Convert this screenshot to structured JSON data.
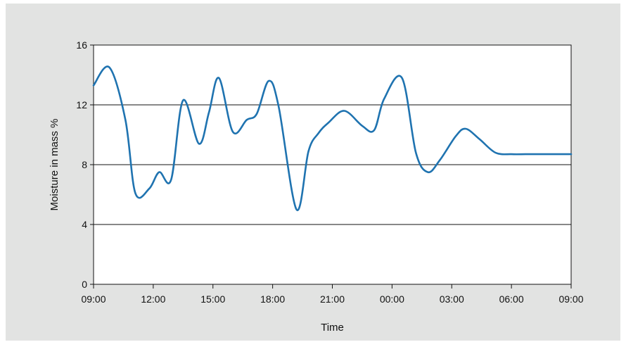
{
  "chart_data": {
    "type": "line",
    "title": "",
    "xlabel": "Time",
    "ylabel": "Moisture in mass %",
    "ylim": [
      0,
      16
    ],
    "yticks": [
      0,
      4,
      8,
      12,
      16
    ],
    "y_tick_labels": [
      "0",
      "4",
      "8",
      "12",
      "16"
    ],
    "xlim": [
      0,
      24
    ],
    "xticks": [
      0,
      3,
      6,
      9,
      12,
      15,
      18,
      21,
      24
    ],
    "x_tick_labels": [
      "09:00",
      "12:00",
      "15:00",
      "18:00",
      "21:00",
      "00:00",
      "03:00",
      "06:00",
      "09:00"
    ],
    "grid": "horizontal",
    "line_color": "#1f73b0",
    "panel_color": "#e2e3e2",
    "series": [
      {
        "x": [
          0,
          0.8,
          1.6,
          2.1,
          2.8,
          3.3,
          3.9,
          4.5,
          5.3,
          5.8,
          6.3,
          7.0,
          7.7,
          8.2,
          8.8,
          9.3,
          10.2,
          10.8,
          11.3,
          11.8,
          12.6,
          13.5,
          14.1,
          14.6,
          15.5,
          16.2,
          16.8,
          17.4,
          18.2,
          18.7,
          19.4,
          20.2,
          21.0,
          21.7,
          22.3,
          23.0,
          23.7,
          24.0
        ],
        "y": [
          13.3,
          14.5,
          11.0,
          6.1,
          6.4,
          7.5,
          7.0,
          12.3,
          9.4,
          11.5,
          13.8,
          10.2,
          11.0,
          11.4,
          13.6,
          11.9,
          5.0,
          8.9,
          10.1,
          10.8,
          11.6,
          10.6,
          10.3,
          12.4,
          13.8,
          8.8,
          7.5,
          8.3,
          9.9,
          10.4,
          9.7,
          8.8,
          8.7,
          8.7,
          8.7,
          8.7,
          8.7,
          8.7
        ]
      }
    ]
  }
}
